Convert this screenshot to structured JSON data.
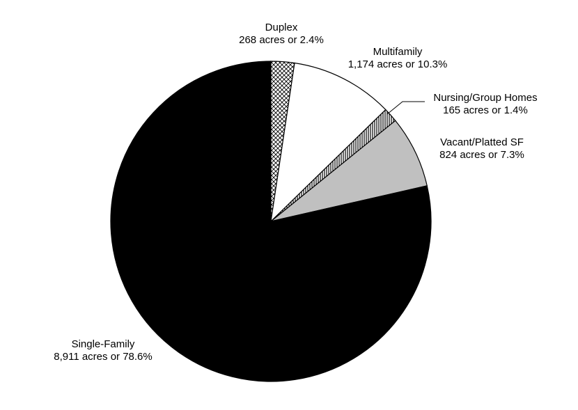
{
  "chart_data": {
    "type": "pie",
    "title": "",
    "start": "12 o'clock",
    "direction": "clockwise",
    "slices": [
      {
        "key": "duplex",
        "name": "Duplex",
        "acres": 268,
        "percent": 2.4,
        "value_label": "268 acres or 2.4%",
        "fill": "#ffffff",
        "pattern": "crosshatch"
      },
      {
        "key": "multifamily",
        "name": "Multifamily",
        "acres": 1174,
        "percent": 10.3,
        "value_label": "1,174 acres or 10.3%",
        "fill": "#ffffff",
        "pattern": "none"
      },
      {
        "key": "nursing",
        "name": "Nursing/Group Homes",
        "acres": 165,
        "percent": 1.4,
        "value_label": "165 acres or 1.4%",
        "fill": "#ffffff",
        "pattern": "vertical-stripes"
      },
      {
        "key": "vacant",
        "name": "Vacant/Platted SF",
        "acres": 824,
        "percent": 7.3,
        "value_label": "824 acres or 7.3%",
        "fill": "#c0c0c0",
        "pattern": "none"
      },
      {
        "key": "single",
        "name": "Single-Family",
        "acres": 8911,
        "percent": 78.6,
        "value_label": "8,911 acres or 78.6%",
        "fill": "#000000",
        "pattern": "none"
      }
    ]
  }
}
